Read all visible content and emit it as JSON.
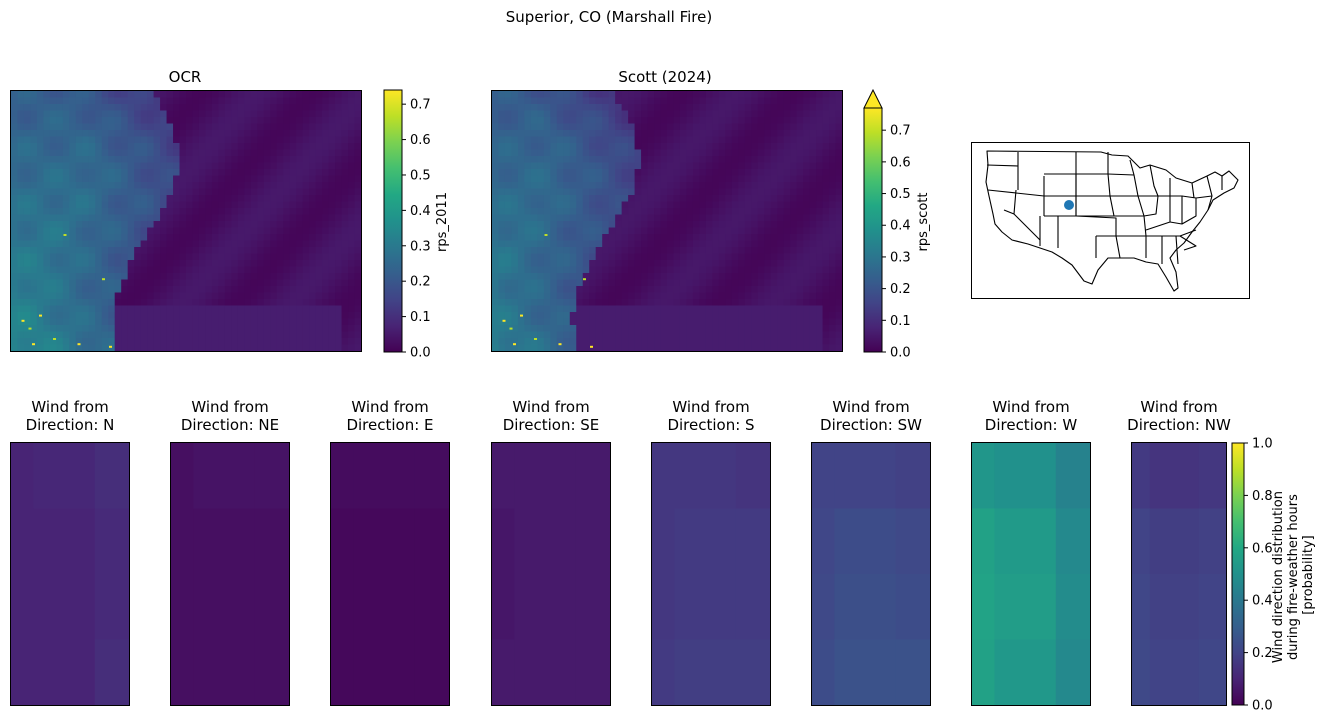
{
  "figure": {
    "suptitle": "Superior, CO (Marshall Fire)"
  },
  "colors": {
    "viridis": [
      "#440154",
      "#482475",
      "#414487",
      "#355f8d",
      "#2a788e",
      "#21918c",
      "#22a884",
      "#44bf70",
      "#7ad151",
      "#bddf26",
      "#fde725"
    ],
    "marker": "#1f77b4"
  },
  "chart_data": [
    {
      "type": "heatmap",
      "title": "OCR",
      "colorbar": {
        "label": "rps_2011",
        "range": [
          0,
          0.74
        ],
        "ticks": [
          "0.0",
          "0.1",
          "0.2",
          "0.3",
          "0.4",
          "0.5",
          "0.6",
          "0.7"
        ],
        "extend": "none"
      }
    },
    {
      "type": "heatmap",
      "title": "Scott (2024)",
      "colorbar": {
        "label": "rps_scott",
        "range": [
          0,
          0.77
        ],
        "ticks": [
          "0.0",
          "0.1",
          "0.2",
          "0.3",
          "0.4",
          "0.5",
          "0.6",
          "0.7"
        ],
        "extend": "max"
      }
    },
    {
      "type": "map",
      "title": "",
      "region": "CONUS states",
      "marker": {
        "name": "Superior, CO",
        "lon": -105.17,
        "lat": 39.95
      }
    },
    {
      "type": "heatmap",
      "title": "Wind from\nDirection: N",
      "direction": "N",
      "cells": [
        [
          0.1,
          0.11,
          0.13
        ],
        [
          0.1,
          0.1,
          0.12
        ],
        [
          0.1,
          0.1,
          0.12
        ],
        [
          0.1,
          0.1,
          0.13
        ]
      ]
    },
    {
      "type": "heatmap",
      "title": "Wind from\nDirection: NE",
      "direction": "NE",
      "cells": [
        [
          0.04,
          0.05,
          0.05
        ],
        [
          0.04,
          0.04,
          0.04
        ],
        [
          0.04,
          0.04,
          0.04
        ],
        [
          0.04,
          0.04,
          0.04
        ]
      ]
    },
    {
      "type": "heatmap",
      "title": "Wind from\nDirection: E",
      "direction": "E",
      "cells": [
        [
          0.03,
          0.03,
          0.03
        ],
        [
          0.02,
          0.02,
          0.02
        ],
        [
          0.02,
          0.02,
          0.02
        ],
        [
          0.02,
          0.02,
          0.02
        ]
      ]
    },
    {
      "type": "heatmap",
      "title": "Wind from\nDirection: SE",
      "direction": "SE",
      "cells": [
        [
          0.07,
          0.07,
          0.07
        ],
        [
          0.06,
          0.07,
          0.07
        ],
        [
          0.06,
          0.07,
          0.07
        ],
        [
          0.07,
          0.07,
          0.07
        ]
      ]
    },
    {
      "type": "heatmap",
      "title": "Wind from\nDirection: S",
      "direction": "S",
      "cells": [
        [
          0.16,
          0.16,
          0.15
        ],
        [
          0.16,
          0.17,
          0.17
        ],
        [
          0.16,
          0.17,
          0.17
        ],
        [
          0.17,
          0.18,
          0.18
        ]
      ]
    },
    {
      "type": "heatmap",
      "title": "Wind from\nDirection: SW",
      "direction": "SW",
      "cells": [
        [
          0.2,
          0.2,
          0.19
        ],
        [
          0.21,
          0.23,
          0.22
        ],
        [
          0.22,
          0.24,
          0.23
        ],
        [
          0.23,
          0.25,
          0.25
        ]
      ]
    },
    {
      "type": "heatmap",
      "title": "Wind from\nDirection: W",
      "direction": "W",
      "cells": [
        [
          0.52,
          0.5,
          0.44
        ],
        [
          0.57,
          0.54,
          0.47
        ],
        [
          0.58,
          0.55,
          0.48
        ],
        [
          0.57,
          0.53,
          0.47
        ]
      ]
    },
    {
      "type": "heatmap",
      "title": "Wind from\nDirection: NW",
      "direction": "NW",
      "cells": [
        [
          0.17,
          0.15,
          0.16
        ],
        [
          0.2,
          0.18,
          0.19
        ],
        [
          0.21,
          0.19,
          0.2
        ],
        [
          0.22,
          0.2,
          0.21
        ]
      ],
      "colorbar": {
        "label": "Wind direction distribution\nduring fire-weather hours\n[probability]",
        "range": [
          0,
          1
        ],
        "ticks": [
          "0.0",
          "0.2",
          "0.4",
          "0.6",
          "0.8",
          "1.0"
        ],
        "extend": "none"
      }
    }
  ]
}
